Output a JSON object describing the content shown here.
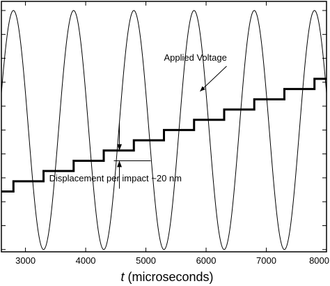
{
  "chart_data": {
    "type": "line",
    "xlabel_symbol": "t",
    "xlabel_rest": " (microseconds)",
    "xlim": [
      2600,
      8000
    ],
    "xticks": [
      3000,
      4000,
      5000,
      6000,
      7000,
      8000
    ],
    "xtick_labels": [
      "3000",
      "4000",
      "5000",
      "6000",
      "7000",
      "8000"
    ],
    "ylim": [
      0,
      11
    ],
    "y_minor_ticks": [
      0.1,
      1.15,
      2.2,
      3.25,
      4.3,
      5.35,
      6.4,
      7.45,
      8.5,
      9.55,
      10.6
    ],
    "grid": false,
    "series": [
      {
        "name": "Applied Voltage",
        "kind": "sinusoid",
        "period_us": 1000,
        "peak_times_us": [
          2800,
          3800,
          4800,
          5800,
          6800,
          7800
        ],
        "min": 0.1,
        "max": 10.6,
        "color": "#000000"
      },
      {
        "name": "",
        "kind": "staircase",
        "color": "#000000",
        "x": [
          2600,
          2800,
          2800,
          3300,
          3300,
          3800,
          3800,
          4300,
          4300,
          4800,
          4800,
          5300,
          5300,
          5800,
          5800,
          6300,
          6300,
          6800,
          6800,
          7300,
          7300,
          7800,
          7800,
          8000
        ],
        "y": [
          2.65,
          2.65,
          3.1,
          3.1,
          3.55,
          3.55,
          4.0,
          4.0,
          4.45,
          4.45,
          4.9,
          4.9,
          5.35,
          5.35,
          5.8,
          5.8,
          6.25,
          6.25,
          6.7,
          6.7,
          7.15,
          7.15,
          7.6,
          7.6
        ]
      }
    ],
    "annotations": [
      {
        "text": "Applied Voltage",
        "x": 5300,
        "y": 8.4,
        "arrow_to": [
          5900,
          7.05
        ]
      },
      {
        "text": "Displacement per impact ~20 nm",
        "x": 4700,
        "y": 3.1,
        "bracket_x": 4560,
        "bracket_y": [
          4.0,
          4.45
        ]
      }
    ]
  }
}
